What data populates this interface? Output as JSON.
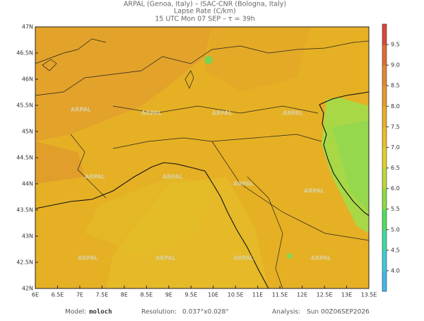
{
  "header": {
    "lines": [
      "ARPAL (Genoa, Italy)  –  ISAC-CNR (Bologna, Italy)",
      "Lapse Rate (C/km)",
      "15 UTC Mon 07 SEP  –  τ = 39h"
    ]
  },
  "map": {
    "xlim": [
      6,
      13.5
    ],
    "ylim": [
      42,
      47
    ],
    "xticks": [
      {
        "value": 6,
        "label": "6E"
      },
      {
        "value": 6.5,
        "label": "6.5E"
      },
      {
        "value": 7,
        "label": "7E"
      },
      {
        "value": 7.5,
        "label": "7.5E"
      },
      {
        "value": 8,
        "label": "8E"
      },
      {
        "value": 8.5,
        "label": "8.5E"
      },
      {
        "value": 9,
        "label": "9E"
      },
      {
        "value": 9.5,
        "label": "9.5E"
      },
      {
        "value": 10,
        "label": "10E"
      },
      {
        "value": 10.5,
        "label": "10.5E"
      },
      {
        "value": 11,
        "label": "11E"
      },
      {
        "value": 11.5,
        "label": "11.5E"
      },
      {
        "value": 12,
        "label": "12E"
      },
      {
        "value": 12.5,
        "label": "12.5E"
      },
      {
        "value": 13,
        "label": "13E"
      },
      {
        "value": 13.5,
        "label": "13.5E"
      }
    ],
    "yticks": [
      {
        "value": 42,
        "label": "42N"
      },
      {
        "value": 42.5,
        "label": "42.5N"
      },
      {
        "value": 43,
        "label": "43N"
      },
      {
        "value": 43.5,
        "label": "43.5N"
      },
      {
        "value": 44,
        "label": "44N"
      },
      {
        "value": 44.5,
        "label": "44.5N"
      },
      {
        "value": 45,
        "label": "45N"
      },
      {
        "value": 45.5,
        "label": "45.5N"
      },
      {
        "value": 46,
        "label": "46N"
      },
      {
        "value": 46.5,
        "label": "46.5N"
      },
      {
        "value": 47,
        "label": "47N"
      }
    ],
    "watermark": "ARPAL"
  },
  "colorbar": {
    "lim": [
      3.5,
      10
    ],
    "ticks": [
      {
        "value": 4,
        "label": "4.0"
      },
      {
        "value": 4.5,
        "label": "4.5"
      },
      {
        "value": 5,
        "label": "5.0"
      },
      {
        "value": 5.5,
        "label": "5.5"
      },
      {
        "value": 6,
        "label": "6.0"
      },
      {
        "value": 6.5,
        "label": "6.5"
      },
      {
        "value": 7,
        "label": "7.0"
      },
      {
        "value": 7.5,
        "label": "7.5"
      },
      {
        "value": 8,
        "label": "8.0"
      },
      {
        "value": 8.5,
        "label": "8.5"
      },
      {
        "value": 9,
        "label": "9.0"
      },
      {
        "value": 9.5,
        "label": "9.5"
      }
    ]
  },
  "footer": {
    "model_label": "Model:",
    "model": "moloch",
    "resolution_label": "Resolution:",
    "resolution": "0.037°x0.028°",
    "analysis_label": "Analysis:",
    "analysis": "Sun 00Z06SEP2026"
  }
}
